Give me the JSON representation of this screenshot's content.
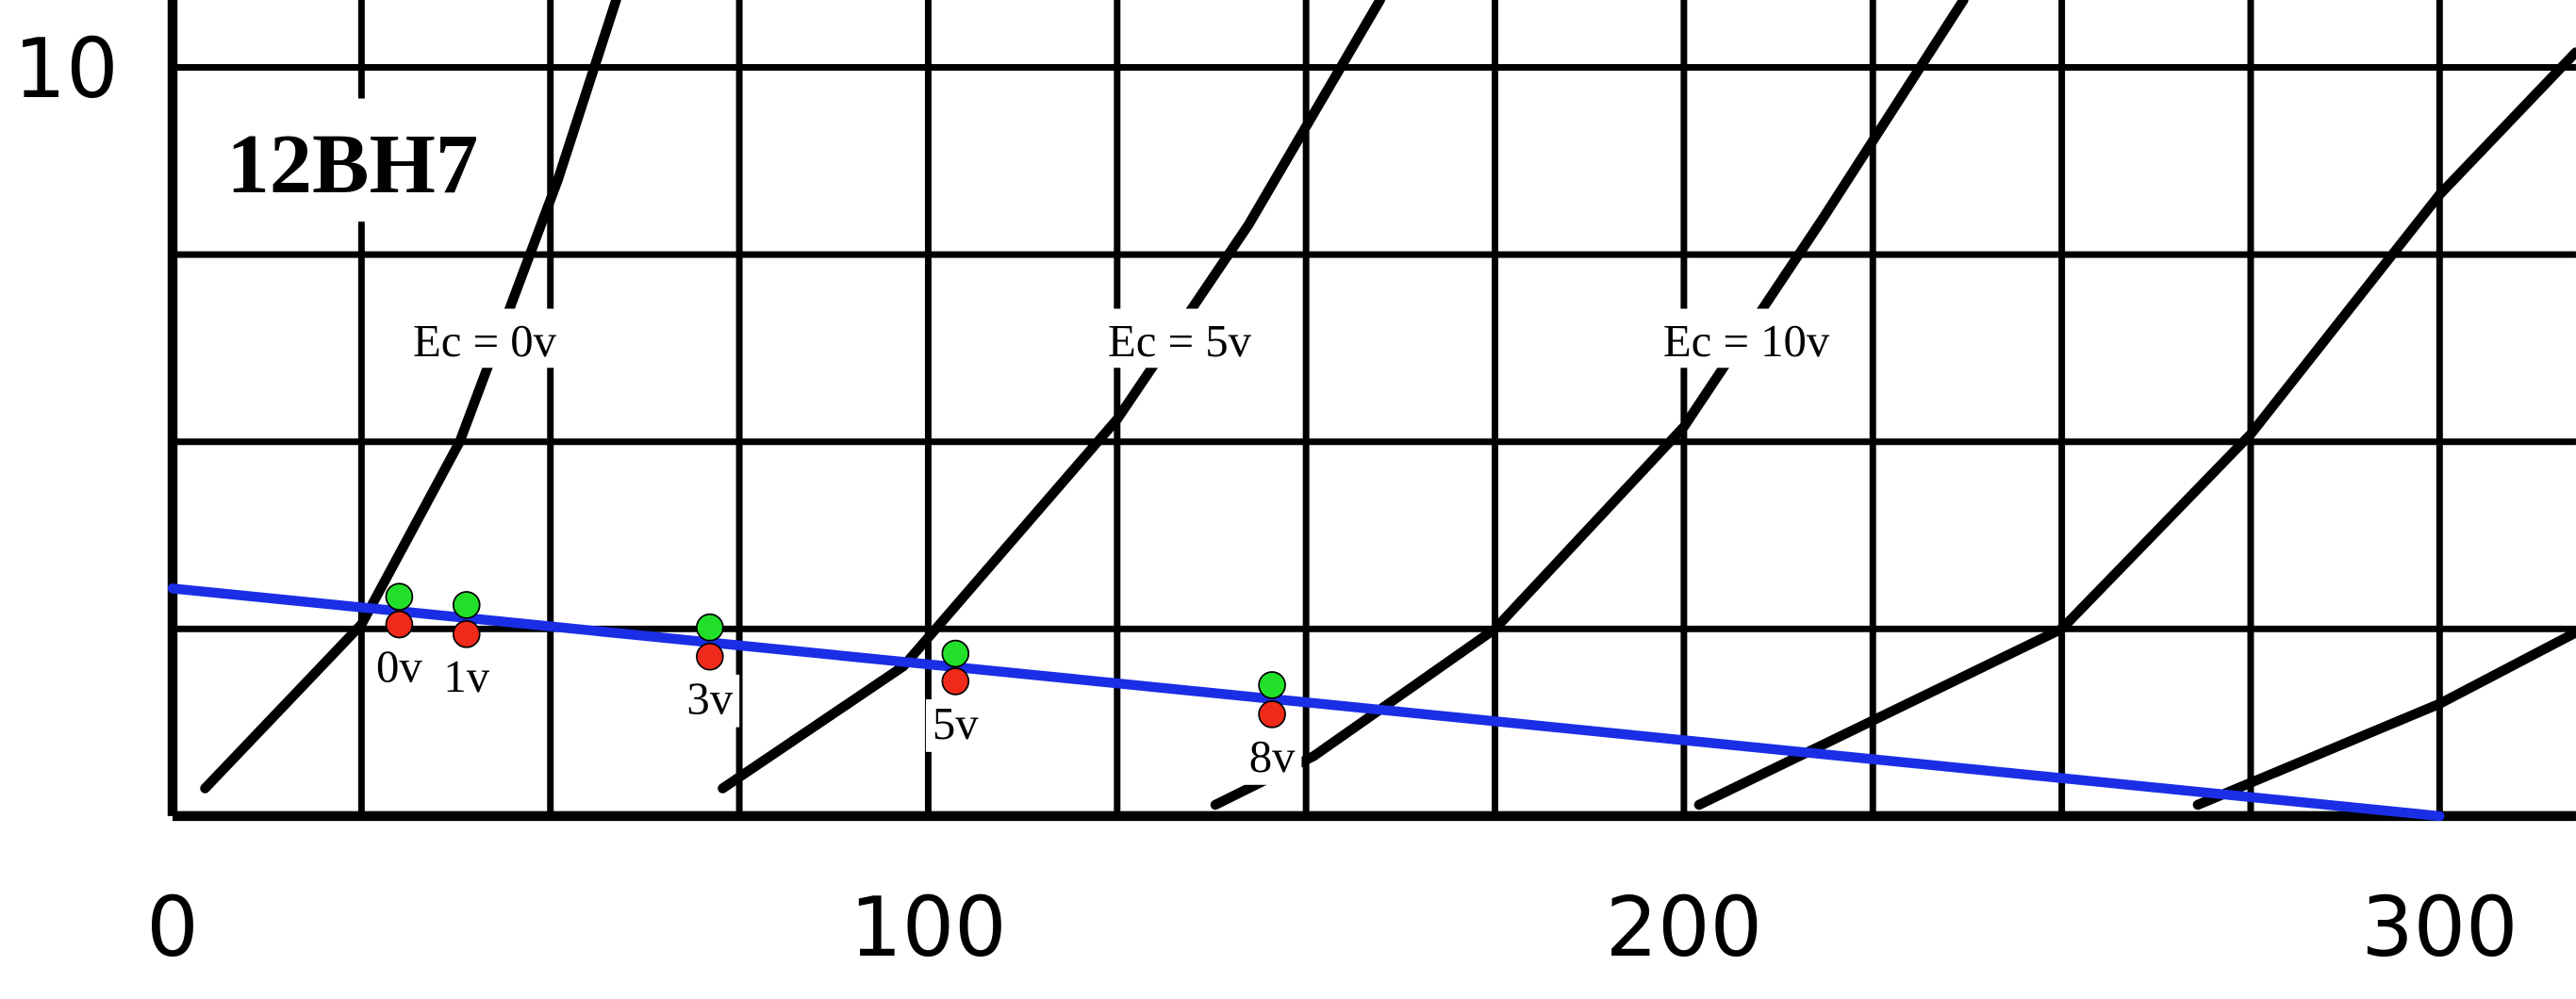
{
  "chart_data": {
    "type": "line",
    "title": "12BH7",
    "xlim": [
      0,
      318
    ],
    "ylim": [
      0,
      10.9
    ],
    "xticks": [
      0,
      100,
      200,
      300
    ],
    "yticks": [
      10
    ],
    "xgrid": [
      0,
      25,
      50,
      75,
      100,
      125,
      150,
      175,
      200,
      225,
      250,
      275,
      300
    ],
    "ygrid": [
      0,
      2.5,
      5,
      7.5,
      10
    ],
    "annotations": [
      "Ec = 0v",
      "Ec = 5v",
      "Ec = 10v"
    ],
    "series": [
      {
        "color": "#000000",
        "x": [
          4.3,
          25,
          38,
          51,
          58.7
        ],
        "values": [
          0.37,
          2.56,
          5.0,
          8.5,
          10.9
        ]
      },
      {
        "color": "#000000",
        "x": [
          72.8,
          96.7,
          125,
          142.4,
          159.8
        ],
        "values": [
          0.37,
          2.0,
          5.3,
          7.9,
          10.9
        ]
      },
      {
        "color": "#000000",
        "x": [
          138,
          151,
          175,
          200,
          218.5,
          237
        ],
        "values": [
          0.15,
          0.8,
          2.5,
          5.2,
          8.0,
          10.9
        ]
      },
      {
        "color": "#000000",
        "x": [
          202,
          250,
          275,
          300,
          318
        ],
        "values": [
          0.15,
          2.5,
          5.1,
          8.3,
          10.2
        ]
      },
      {
        "color": "#000000",
        "x": [
          268,
          300,
          318
        ],
        "values": [
          0.15,
          1.5,
          2.45
        ]
      },
      {
        "color": "#1a2ee6",
        "x": [
          0,
          300
        ],
        "values": [
          3.04,
          0
        ]
      }
    ],
    "markers": {
      "labels": [
        "0v",
        "1v",
        "3v",
        "5v",
        "8v"
      ],
      "x": [
        30,
        38.9,
        71.1,
        103.6,
        145.5
      ],
      "upper": [
        2.93,
        2.82,
        2.52,
        2.17,
        1.75
      ],
      "lower": [
        2.56,
        2.43,
        2.13,
        1.8,
        1.36
      ],
      "upper_color": "#22e02a",
      "lower_color": "#f02a1a"
    }
  }
}
